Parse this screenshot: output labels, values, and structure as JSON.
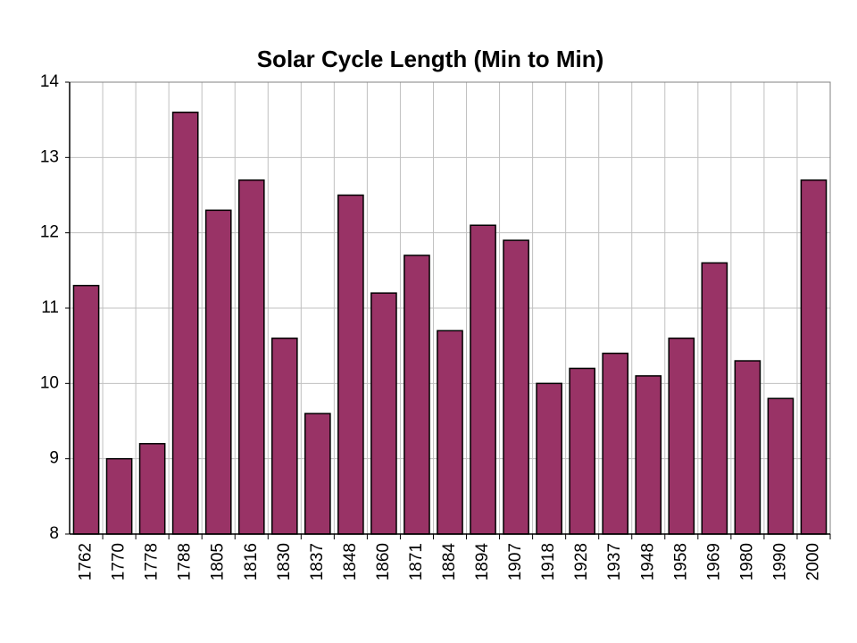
{
  "chart_data": {
    "type": "bar",
    "title": "Solar Cycle Length (Min to Min)",
    "categories": [
      "1762",
      "1770",
      "1778",
      "1788",
      "1805",
      "1816",
      "1830",
      "1837",
      "1848",
      "1860",
      "1871",
      "1884",
      "1894",
      "1907",
      "1918",
      "1928",
      "1937",
      "1948",
      "1958",
      "1969",
      "1980",
      "1990",
      "2000"
    ],
    "values": [
      11.3,
      9.0,
      9.2,
      13.6,
      12.3,
      12.7,
      10.6,
      9.6,
      12.5,
      11.2,
      11.7,
      10.7,
      12.1,
      11.9,
      10.0,
      10.2,
      10.4,
      10.1,
      10.6,
      11.6,
      10.3,
      9.8,
      12.7
    ],
    "color": "#993366",
    "ylim": [
      8,
      14
    ],
    "yticks": [
      8,
      9,
      10,
      11,
      12,
      13,
      14
    ],
    "grid": true
  }
}
